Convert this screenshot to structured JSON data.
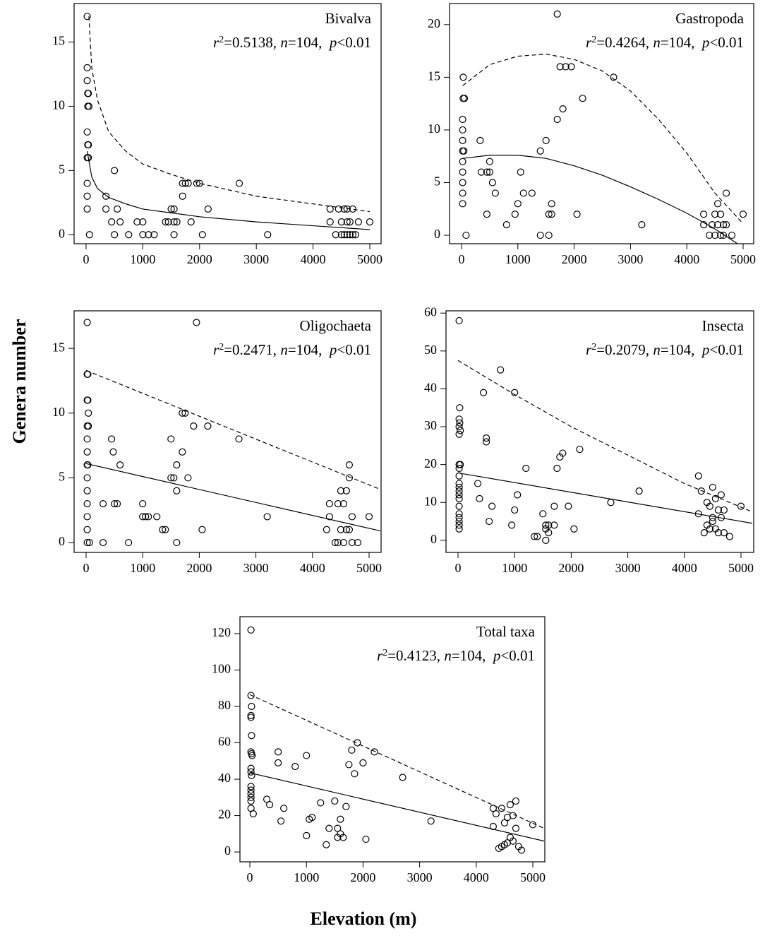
{
  "ylabel": "Genera number",
  "xlabel": "Elevation (m)",
  "chart_data": [
    {
      "type": "scatter",
      "title": "Bivalva",
      "annotation": [
        {
          "text": "r",
          "style": "italic"
        },
        {
          "text": "2",
          "style": "sup"
        },
        {
          "text": "=0.5138, "
        },
        {
          "text": "n",
          "style": "italic"
        },
        {
          "text": "=104,  "
        },
        {
          "text": "p",
          "style": "italic"
        },
        {
          "text": "<0.01"
        }
      ],
      "xlim": [
        -211,
        5199
      ],
      "ylim": [
        -0.7,
        18
      ],
      "xticks": [
        0,
        1000,
        2000,
        3000,
        4000,
        5000
      ],
      "yticks": [
        0,
        5,
        10,
        15
      ],
      "x": [
        20,
        20,
        20,
        30,
        40,
        30,
        50,
        20,
        30,
        40,
        20,
        40,
        20,
        20,
        20,
        60,
        350,
        350,
        500,
        450,
        550,
        600,
        500,
        750,
        900,
        1000,
        1000,
        1100,
        1200,
        1400,
        1450,
        1500,
        1550,
        1550,
        1600,
        1550,
        1700,
        1700,
        1750,
        1800,
        1850,
        1950,
        2000,
        2050,
        2150,
        2700,
        3200,
        4300,
        4300,
        4400,
        4450,
        4500,
        4500,
        4550,
        4600,
        4600,
        4600,
        4650,
        4700,
        4700,
        4750,
        4800,
        5000,
        4550,
        4650
      ],
      "values": [
        17,
        13,
        12,
        11,
        11,
        10,
        10,
        8,
        7,
        7,
        6,
        6,
        4,
        3,
        2,
        0,
        3,
        2,
        5,
        1,
        2,
        1,
        0,
        0,
        1,
        1,
        0,
        0,
        0,
        1,
        1,
        2,
        1,
        2,
        1,
        0,
        4,
        3,
        4,
        4,
        1,
        4,
        4,
        0,
        2,
        4,
        0,
        2,
        1,
        0,
        2,
        1,
        0,
        2,
        0,
        1,
        2,
        1,
        0,
        2,
        0,
        1,
        1,
        0,
        0
      ],
      "fits": [
        {
          "style": "solid",
          "x": [
            20,
            100,
            200,
            400,
            700,
            1000,
            1500,
            2000,
            3000,
            4000,
            5000
          ],
          "values": [
            6.5,
            4.5,
            3.6,
            2.9,
            2.4,
            2.0,
            1.7,
            1.4,
            1.0,
            0.7,
            0.4
          ]
        },
        {
          "style": "dashed",
          "x": [
            50,
            100,
            200,
            400,
            700,
            1000,
            1500,
            2000,
            3000,
            4000,
            5000
          ],
          "values": [
            17,
            13,
            10.5,
            8,
            6.5,
            5.5,
            4.7,
            4.0,
            3.0,
            2.4,
            1.8
          ]
        }
      ]
    },
    {
      "type": "scatter",
      "title": "Gastropoda",
      "annotation": [
        {
          "text": "r",
          "style": "italic"
        },
        {
          "text": "2",
          "style": "sup"
        },
        {
          "text": "=0.4264, "
        },
        {
          "text": "n",
          "style": "italic"
        },
        {
          "text": "=104,  "
        },
        {
          "text": "p",
          "style": "italic"
        },
        {
          "text": "<0.01"
        }
      ],
      "xlim": [
        -213,
        5188
      ],
      "ylim": [
        -0.8,
        22
      ],
      "xticks": [
        0,
        1000,
        2000,
        3000,
        4000,
        5000
      ],
      "yticks": [
        0,
        5,
        10,
        15,
        20
      ],
      "x": [
        30,
        30,
        50,
        20,
        20,
        20,
        20,
        40,
        20,
        20,
        20,
        20,
        20,
        80,
        330,
        350,
        450,
        450,
        500,
        500,
        550,
        600,
        800,
        950,
        1000,
        1050,
        1100,
        1250,
        1400,
        1400,
        1500,
        1550,
        1550,
        1600,
        1600,
        1700,
        1700,
        1750,
        1800,
        1850,
        1950,
        2050,
        2150,
        2700,
        3200,
        4300,
        4300,
        4400,
        4450,
        4500,
        4500,
        4550,
        4550,
        4600,
        4600,
        4650,
        4650,
        4700,
        4700,
        4800,
        5000
      ],
      "values": [
        15,
        13,
        13,
        11,
        10,
        9,
        8,
        8,
        7,
        6,
        5,
        4,
        3,
        0,
        9,
        6,
        2,
        6,
        7,
        6,
        5,
        4,
        1,
        2,
        3,
        6,
        4,
        4,
        8,
        0,
        9,
        0,
        2,
        2,
        3,
        11,
        21,
        16,
        12,
        16,
        16,
        2,
        13,
        15,
        1,
        2,
        1,
        0,
        1,
        2,
        0,
        3,
        1,
        2,
        0,
        1,
        0,
        4,
        1,
        0,
        2
      ],
      "fits": [
        {
          "style": "solid",
          "x": [
            20,
            500,
            1000,
            1500,
            2000,
            2500,
            3000,
            3500,
            4000,
            4500,
            4900
          ],
          "values": [
            7.3,
            7.6,
            7.6,
            7.3,
            6.6,
            5.7,
            4.6,
            3.4,
            2.1,
            0.6,
            -0.8
          ]
        },
        {
          "style": "dashed",
          "x": [
            20,
            500,
            1000,
            1500,
            2000,
            2500,
            3000,
            3500,
            4000,
            4500,
            5000
          ],
          "values": [
            14.2,
            16.2,
            17.0,
            17.2,
            16.7,
            15.6,
            13.7,
            11,
            7.8,
            4,
            1.1
          ]
        }
      ]
    },
    {
      "type": "scatter",
      "title": "Oligochaeta",
      "annotation": [
        {
          "text": "r",
          "style": "italic"
        },
        {
          "text": "2",
          "style": "sup"
        },
        {
          "text": "=0.2471, "
        },
        {
          "text": "n",
          "style": "italic"
        },
        {
          "text": "=104,  "
        },
        {
          "text": "p",
          "style": "italic"
        },
        {
          "text": "<0.01"
        }
      ],
      "xlim": [
        -212,
        5212
      ],
      "ylim": [
        -0.76,
        17.9
      ],
      "xticks": [
        0,
        1000,
        2000,
        3000,
        4000,
        5000
      ],
      "yticks": [
        0,
        5,
        10,
        15
      ],
      "x": [
        20,
        20,
        30,
        20,
        30,
        40,
        20,
        40,
        20,
        20,
        20,
        30,
        20,
        20,
        20,
        20,
        20,
        20,
        60,
        300,
        300,
        450,
        480,
        500,
        550,
        600,
        750,
        1000,
        1000,
        1050,
        1100,
        1250,
        1350,
        1400,
        1500,
        1500,
        1550,
        1600,
        1600,
        1600,
        1700,
        1700,
        1750,
        1800,
        1900,
        1950,
        2050,
        2150,
        2700,
        3200,
        4250,
        4300,
        4300,
        4400,
        4450,
        4450,
        4500,
        4500,
        4550,
        4550,
        4600,
        4600,
        4650,
        4650,
        4650,
        4700,
        4700,
        4800,
        5000
      ],
      "values": [
        17,
        13,
        13,
        11,
        11,
        10,
        9,
        9,
        8,
        7,
        6,
        6,
        5,
        4,
        3,
        2,
        1,
        0,
        0,
        3,
        0,
        8,
        7,
        3,
        3,
        6,
        0,
        3,
        2,
        2,
        2,
        2,
        1,
        1,
        8,
        5,
        5,
        6,
        4,
        0,
        7,
        10,
        10,
        5,
        9,
        17,
        1,
        9,
        8,
        2,
        1,
        3,
        2,
        0,
        3,
        0,
        4,
        1,
        3,
        0,
        4,
        1,
        5,
        1,
        6,
        0,
        2,
        0,
        2
      ],
      "fits": [
        {
          "style": "solid",
          "x": [
            0,
            5200
          ],
          "values": [
            6.1,
            0.9
          ]
        },
        {
          "style": "dashed",
          "x": [
            0,
            5200
          ],
          "values": [
            13.3,
            4.1
          ]
        }
      ]
    },
    {
      "type": "scatter",
      "title": "Insecta",
      "annotation": [
        {
          "text": "r",
          "style": "italic"
        },
        {
          "text": "2",
          "style": "sup"
        },
        {
          "text": "=0.2079, "
        },
        {
          "text": "n",
          "style": "italic"
        },
        {
          "text": "=104,  "
        },
        {
          "text": "p",
          "style": "italic"
        },
        {
          "text": "<0.01"
        }
      ],
      "xlim": [
        -212,
        5225
      ],
      "ylim": [
        -3.2,
        60.6
      ],
      "xticks": [
        0,
        1000,
        2000,
        3000,
        4000,
        5000
      ],
      "yticks": [
        0,
        10,
        20,
        30,
        40,
        50,
        60
      ],
      "x": [
        20,
        30,
        20,
        30,
        20,
        40,
        20,
        20,
        40,
        20,
        20,
        20,
        20,
        20,
        20,
        20,
        20,
        20,
        20,
        20,
        20,
        20,
        350,
        380,
        450,
        500,
        500,
        550,
        600,
        750,
        950,
        1000,
        1000,
        1050,
        1200,
        1350,
        1400,
        1500,
        1550,
        1550,
        1600,
        1550,
        1600,
        1700,
        1700,
        1750,
        1800,
        1850,
        1950,
        2050,
        2150,
        2700,
        3200,
        4250,
        4250,
        4300,
        4350,
        4400,
        4400,
        4450,
        4450,
        4500,
        4500,
        4500,
        4550,
        4550,
        4600,
        4600,
        4650,
        4650,
        4700,
        4700,
        4800,
        5000
      ],
      "values": [
        58,
        35,
        32,
        31,
        30,
        29,
        28,
        20,
        20,
        19,
        17,
        15,
        14,
        13,
        12,
        11,
        9,
        7,
        6,
        5,
        4,
        3,
        15,
        11,
        39,
        27,
        26,
        5,
        9,
        45,
        4,
        8,
        39,
        12,
        19,
        1,
        1,
        7,
        4,
        3,
        4,
        0,
        2,
        4,
        9,
        19,
        22,
        23,
        9,
        3,
        24,
        10,
        13,
        17,
        7,
        13,
        2,
        4,
        10,
        3,
        9,
        14,
        6,
        5,
        11,
        3,
        8,
        2,
        12,
        6,
        8,
        2,
        1,
        9
      ],
      "fits": [
        {
          "style": "solid",
          "x": [
            0,
            5200
          ],
          "values": [
            17.8,
            4.5
          ]
        },
        {
          "style": "dashed",
          "x": [
            0,
            1000,
            2000,
            3000,
            4000,
            5200
          ],
          "values": [
            47.5,
            38.5,
            30,
            22.5,
            15,
            7.5
          ]
        }
      ]
    },
    {
      "type": "scatter",
      "title": "Total taxa",
      "annotation": [
        {
          "text": "r",
          "style": "italic"
        },
        {
          "text": "2",
          "style": "sup"
        },
        {
          "text": "=0.4123, "
        },
        {
          "text": "n",
          "style": "italic"
        },
        {
          "text": "=104,  "
        },
        {
          "text": "p",
          "style": "italic"
        },
        {
          "text": "<0.01"
        }
      ],
      "xlim": [
        -175,
        5212
      ],
      "ylim": [
        -5.4,
        129.3
      ],
      "xticks": [
        0,
        1000,
        2000,
        3000,
        4000,
        5000
      ],
      "yticks": [
        0,
        20,
        40,
        60,
        80,
        100,
        120
      ],
      "x": [
        20,
        20,
        30,
        20,
        20,
        30,
        20,
        30,
        40,
        20,
        20,
        30,
        20,
        20,
        20,
        20,
        20,
        20,
        60,
        300,
        350,
        500,
        500,
        550,
        600,
        800,
        1000,
        1000,
        1050,
        1100,
        1250,
        1350,
        1400,
        1500,
        1550,
        1550,
        1600,
        1600,
        1650,
        1700,
        1750,
        1800,
        1850,
        1900,
        2000,
        2050,
        2200,
        2700,
        3200,
        4300,
        4300,
        4350,
        4400,
        4450,
        4450,
        4500,
        4500,
        4550,
        4550,
        4600,
        4600,
        4650,
        4650,
        4700,
        4700,
        4750,
        4800,
        5000
      ],
      "values": [
        122,
        86,
        80,
        75,
        74,
        64,
        55,
        54,
        53,
        46,
        44,
        42,
        36,
        34,
        32,
        30,
        28,
        24,
        21,
        29,
        26,
        55,
        49,
        17,
        24,
        47,
        9,
        53,
        18,
        19,
        27,
        4,
        13,
        28,
        8,
        13,
        18,
        10,
        8,
        25,
        48,
        56,
        43,
        60,
        49,
        7,
        55,
        41,
        17,
        14,
        24,
        21,
        2,
        3,
        24,
        16,
        4,
        5,
        19,
        26,
        8,
        20,
        6,
        28,
        13,
        3,
        1,
        15
      ],
      "fits": [
        {
          "style": "solid",
          "x": [
            0,
            5200
          ],
          "values": [
            43.5,
            6
          ]
        },
        {
          "style": "dashed",
          "x": [
            0,
            5200
          ],
          "values": [
            86.5,
            13
          ]
        }
      ]
    }
  ]
}
